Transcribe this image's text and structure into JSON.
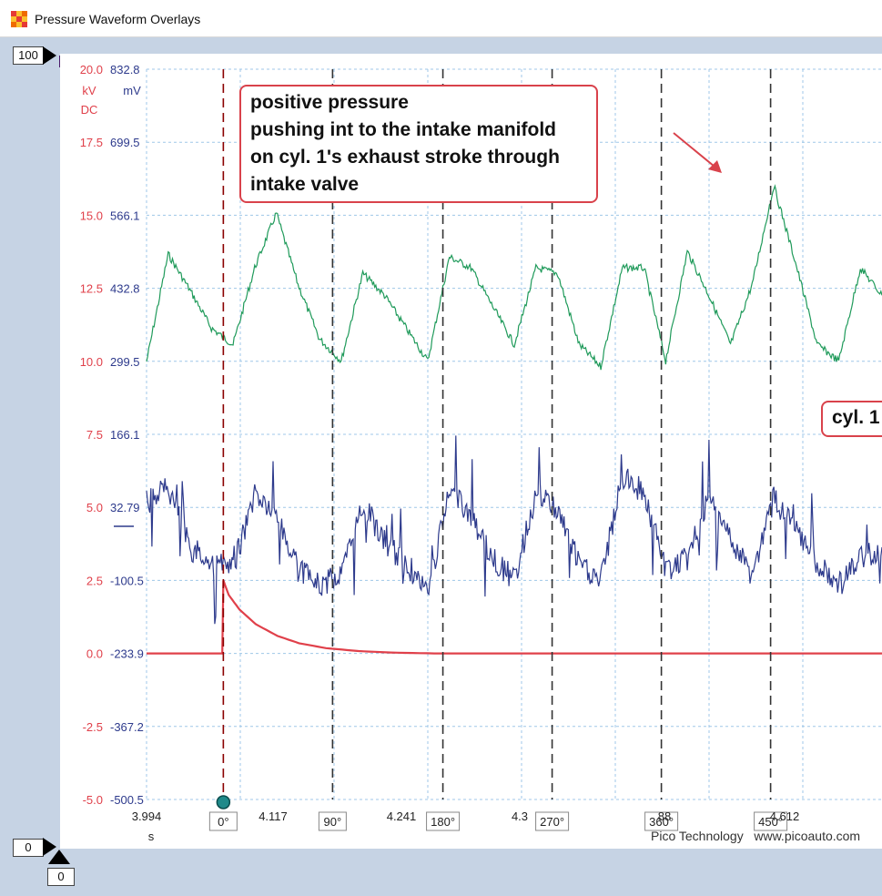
{
  "window": {
    "title": "Pressure Waveform Overlays",
    "icon_colors": [
      "#e53935",
      "#fbc02d",
      "#ef6c00",
      "#fbc02d",
      "#e53935",
      "#fbc02d",
      "#ef6c00",
      "#fbc02d",
      "#e53935"
    ]
  },
  "left_handle": {
    "top_value": "100",
    "bottom_value": "0"
  },
  "bottom_handle": {
    "value": "0"
  },
  "annotation": {
    "lines": [
      "positive pressure",
      "pushing int to the intake manifold",
      "on cyl. 1's exhaust stroke through",
      "intake valve"
    ],
    "color": "#d9424b"
  },
  "cyl_label": "cyl. 1",
  "credit": {
    "company": "Pico Technology",
    "url": "www.picoauto.com"
  },
  "chart_data": {
    "type": "line",
    "x_unit": "s",
    "x_ticks": [
      "3.994",
      "4.117",
      "4.241",
      "4.3",
      "88",
      "4.612"
    ],
    "x_range": [
      3.994,
      4.674
    ],
    "grid": true,
    "axes": [
      {
        "unit": "kV",
        "coupling": "DC",
        "color": "#e0404a",
        "ticks": [
          "20.0",
          "17.5",
          "15.0",
          "12.5",
          "10.0",
          "7.5",
          "5.0",
          "2.5",
          "0.0",
          "-2.5",
          "-5.0"
        ],
        "range": [
          -5,
          20
        ]
      },
      {
        "unit": "mV",
        "color": "#2d3a8c",
        "ticks": [
          "832.8",
          "699.5",
          "566.1",
          "432.8",
          "299.5",
          "166.1",
          "32.79",
          "-100.5",
          "-233.9",
          "-367.2",
          "-500.5"
        ],
        "range": [
          -500.5,
          832.8
        ]
      }
    ],
    "rulers": [
      {
        "label": "0°",
        "x": 4.065,
        "color": "#8b0000"
      },
      {
        "label": "90°",
        "x": 4.166
      },
      {
        "label": "180°",
        "x": 4.268
      },
      {
        "label": "270°",
        "x": 4.369
      },
      {
        "label": "360°",
        "x": 4.47
      },
      {
        "label": "450°",
        "x": 4.571
      }
    ],
    "series": [
      {
        "color": "#1f9a5a",
        "axis": 1,
        "x": [
          3.994,
          4.014,
          4.034,
          4.054,
          4.074,
          4.094,
          4.114,
          4.134,
          4.154,
          4.174,
          4.194,
          4.214,
          4.234,
          4.254,
          4.274,
          4.294,
          4.314,
          4.334,
          4.354,
          4.374,
          4.394,
          4.414,
          4.434,
          4.454,
          4.474,
          4.494,
          4.514,
          4.534,
          4.554,
          4.574,
          4.594,
          4.614,
          4.634,
          4.654,
          4.674
        ],
        "values": [
          299,
          495,
          430,
          360,
          330,
          470,
          570,
          440,
          340,
          300,
          460,
          420,
          360,
          300,
          490,
          470,
          400,
          330,
          470,
          460,
          330,
          290,
          470,
          470,
          300,
          500,
          420,
          330,
          440,
          620,
          480,
          330,
          300,
          470,
          420
        ]
      },
      {
        "color": "#2d3a8c",
        "axis": 1,
        "x": [
          3.994,
          4.014,
          4.034,
          4.054,
          4.074,
          4.094,
          4.114,
          4.134,
          4.154,
          4.174,
          4.194,
          4.214,
          4.234,
          4.254,
          4.274,
          4.294,
          4.314,
          4.334,
          4.354,
          4.374,
          4.394,
          4.414,
          4.434,
          4.454,
          4.474,
          4.494,
          4.514,
          4.534,
          4.554,
          4.574,
          4.594,
          4.614,
          4.634,
          4.654,
          4.674
        ],
        "values": [
          40,
          70,
          -40,
          -70,
          -80,
          60,
          20,
          -80,
          -110,
          -90,
          40,
          -30,
          -70,
          -120,
          60,
          20,
          -60,
          -100,
          60,
          30,
          -70,
          -100,
          90,
          60,
          -80,
          -60,
          50,
          -30,
          -90,
          50,
          -10,
          -70,
          -110,
          -60,
          -40
        ]
      },
      {
        "color": "#e0404a",
        "axis": 0,
        "x": [
          3.994,
          4.04,
          4.064,
          4.065,
          4.07,
          4.08,
          4.095,
          4.115,
          4.135,
          4.16,
          4.19,
          4.22,
          4.26,
          4.674
        ],
        "values": [
          0,
          0,
          0,
          2.5,
          2.0,
          1.5,
          1.0,
          0.6,
          0.35,
          0.18,
          0.08,
          0.03,
          0,
          0
        ]
      }
    ]
  }
}
